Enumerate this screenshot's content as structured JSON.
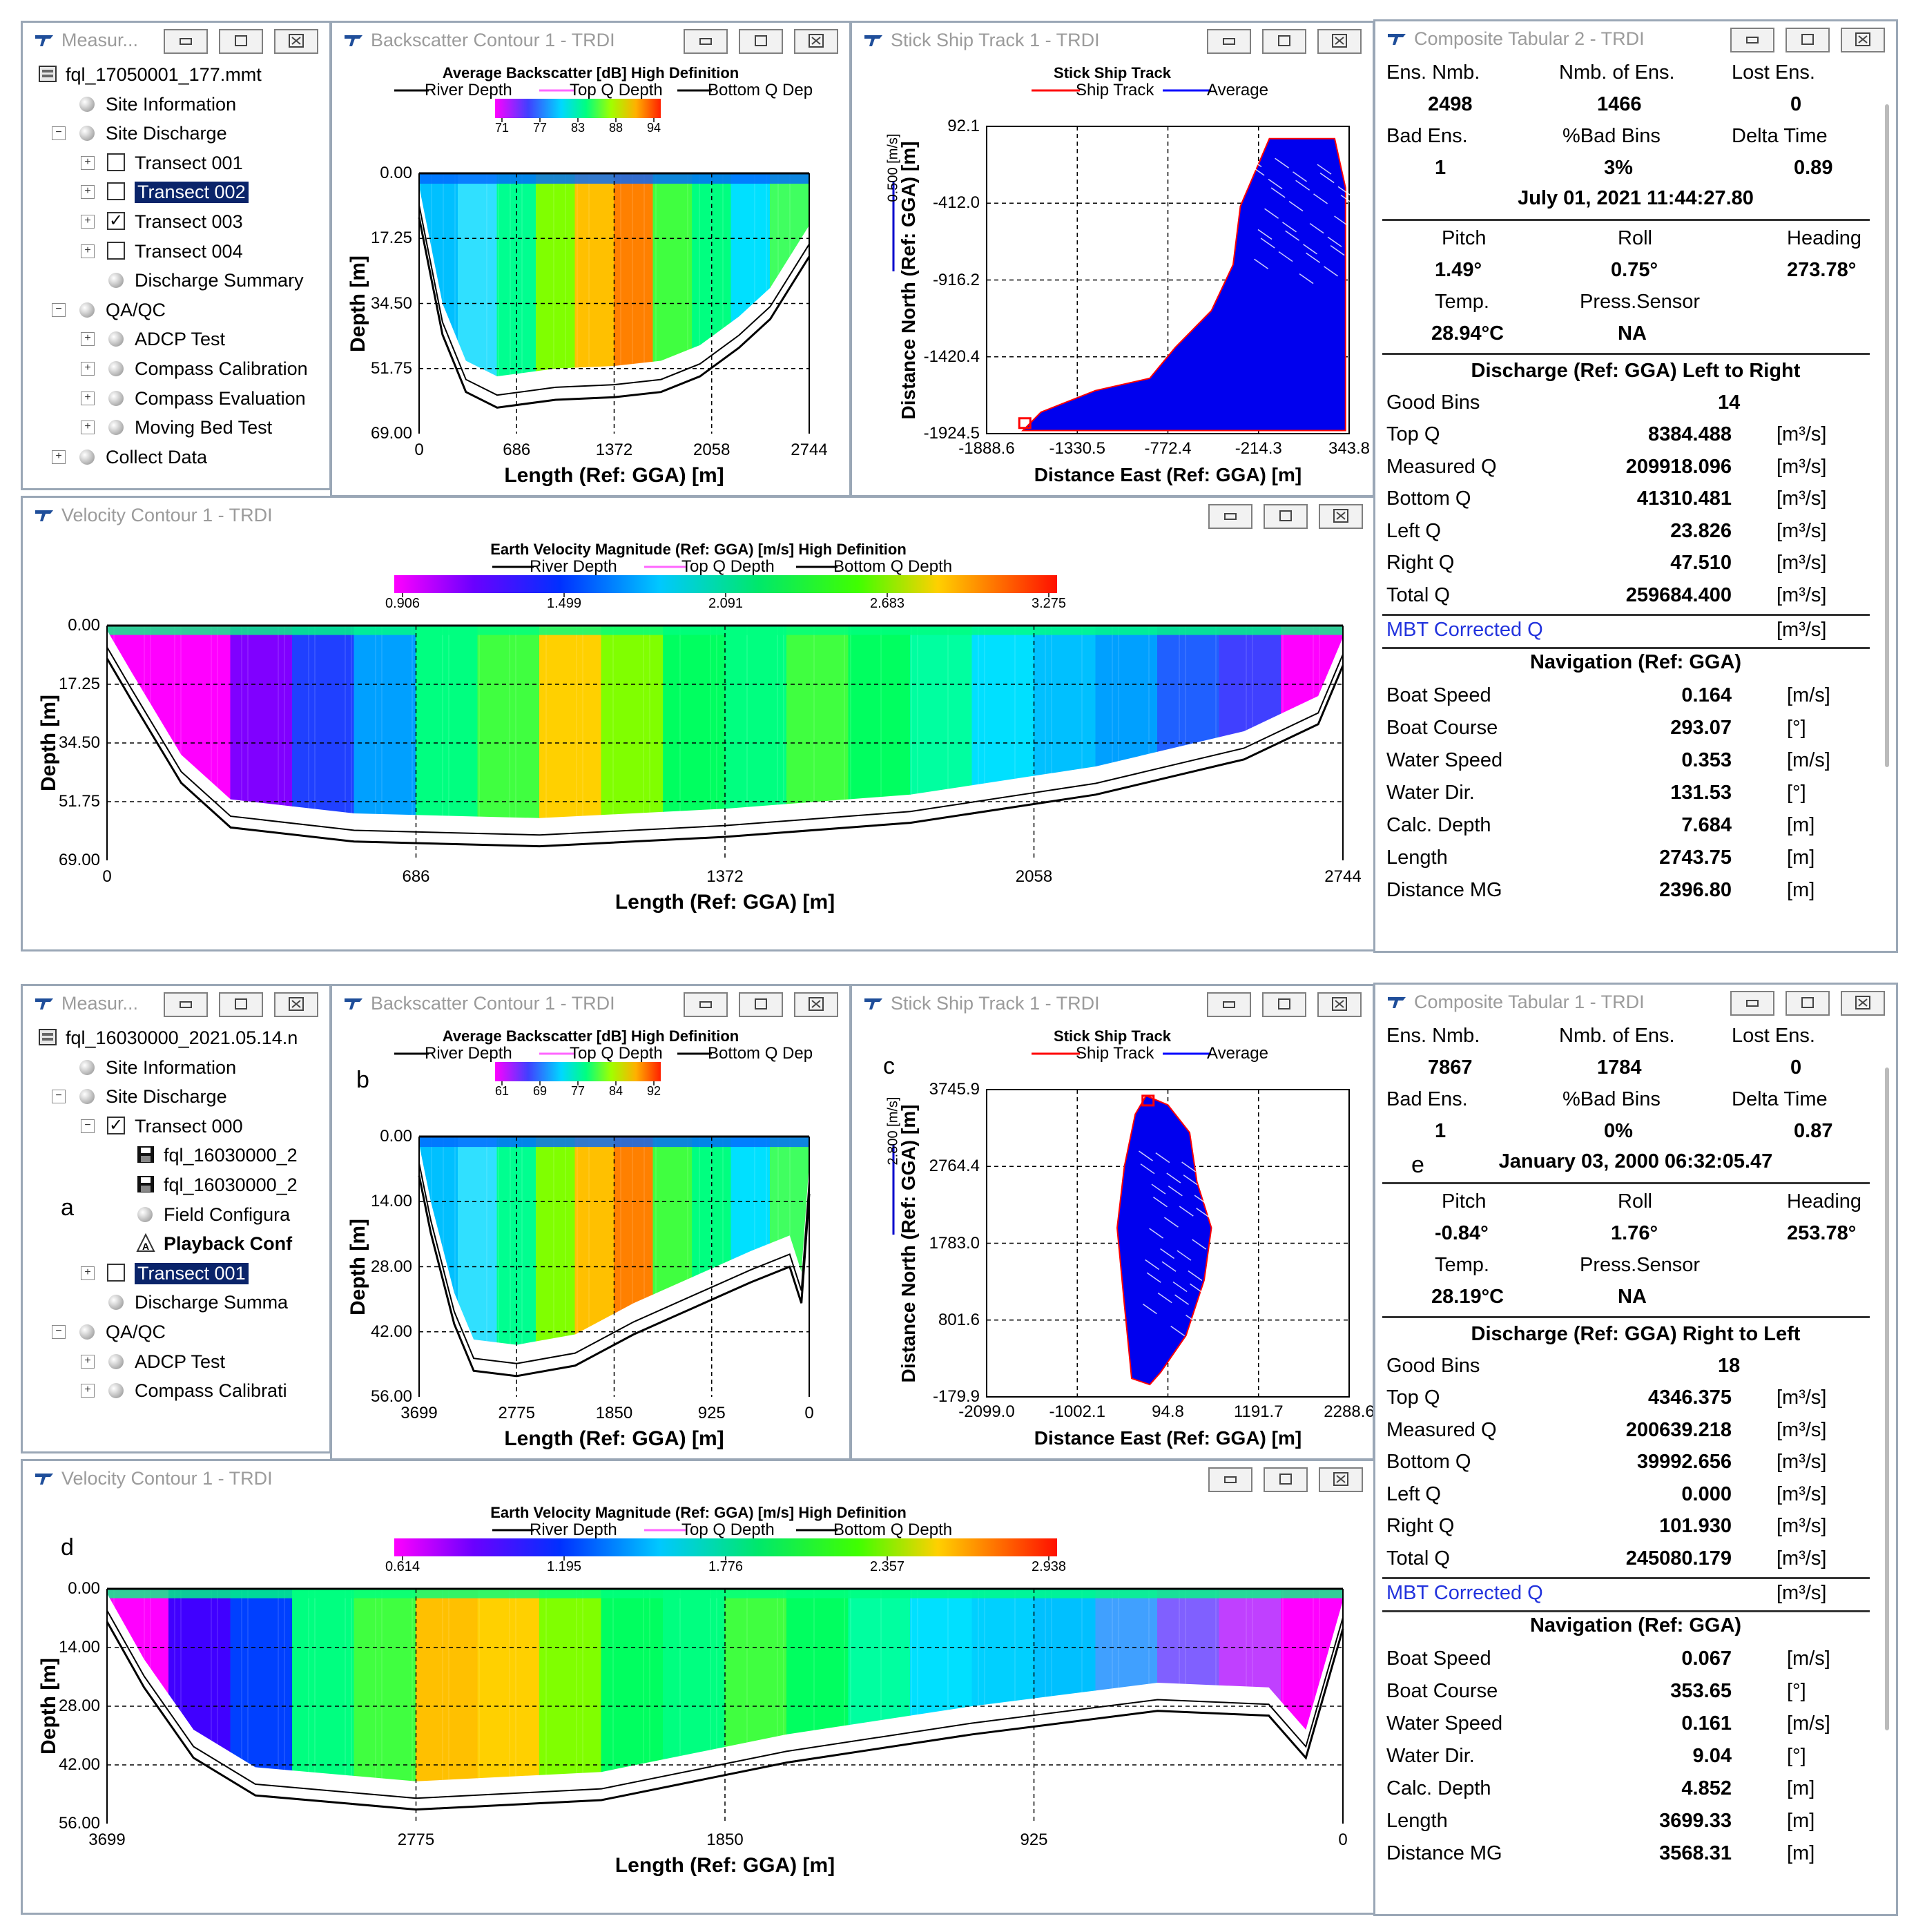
{
  "top": {
    "measurement": {
      "title": "Measur...",
      "items": [
        {
          "label": "fql_17050001_177.mmt",
          "indent": 0,
          "kind": "file",
          "exp": ""
        },
        {
          "label": "Site Information",
          "indent": 1,
          "kind": "bullet",
          "exp": ""
        },
        {
          "label": "Site Discharge",
          "indent": 1,
          "kind": "bullet",
          "exp": "−"
        },
        {
          "label": "Transect 001",
          "indent": 2,
          "kind": "cb",
          "checked": false,
          "exp": "+"
        },
        {
          "label": "Transect 002",
          "indent": 2,
          "kind": "cb",
          "checked": false,
          "exp": "+",
          "selected": true
        },
        {
          "label": "Transect 003",
          "indent": 2,
          "kind": "cb",
          "checked": true,
          "exp": "+"
        },
        {
          "label": "Transect 004",
          "indent": 2,
          "kind": "cb",
          "checked": false,
          "exp": "+"
        },
        {
          "label": "Discharge Summary",
          "indent": 2,
          "kind": "bullet",
          "exp": ""
        },
        {
          "label": "QA/QC",
          "indent": 1,
          "kind": "bullet",
          "exp": "−"
        },
        {
          "label": "ADCP Test",
          "indent": 2,
          "kind": "bullet",
          "exp": "+"
        },
        {
          "label": "Compass Calibration",
          "indent": 2,
          "kind": "bullet",
          "exp": "+"
        },
        {
          "label": "Compass Evaluation",
          "indent": 2,
          "kind": "bullet",
          "exp": "+"
        },
        {
          "label": "Moving Bed Test",
          "indent": 2,
          "kind": "bullet",
          "exp": "+"
        },
        {
          "label": "Collect Data",
          "indent": 1,
          "kind": "bullet",
          "exp": "+"
        }
      ]
    },
    "backscatter": {
      "title": "Backscatter Contour 1 - TRDI",
      "heading": "Average Backscatter [dB] High Definition",
      "legend": [
        "River Depth",
        "Top Q Depth",
        "Bottom Q Dep"
      ],
      "scale": [
        "71",
        "77",
        "83",
        "88",
        "94"
      ],
      "yticks": [
        "0.00",
        "17.25",
        "34.50",
        "51.75",
        "69.00"
      ],
      "xticks": [
        "0",
        "686",
        "1372",
        "2058",
        "2744"
      ],
      "ylabel": "Depth [m]",
      "xlabel": "Length (Ref: GGA) [m]"
    },
    "shiptrack": {
      "title": "Stick Ship Track 1 - TRDI",
      "heading": "Stick Ship Track",
      "legend": [
        "Ship Track",
        "Average"
      ],
      "yticks": [
        "92.1",
        "-412.0",
        "-916.2",
        "-1420.4",
        "-1924.5"
      ],
      "xticks": [
        "-1888.6",
        "-1330.5",
        "-772.4",
        "-214.3",
        "343.8"
      ],
      "ylabel": "Distance North (Ref: GGA) [m]",
      "xlabel": "Distance East (Ref: GGA) [m]",
      "scalebar": "0.500 [m/s]"
    },
    "velocity": {
      "title": "Velocity Contour 1 - TRDI",
      "heading": "Earth Velocity Magnitude (Ref: GGA) [m/s] High Definition",
      "legend": [
        "River Depth",
        "Top Q Depth",
        "Bottom Q Depth"
      ],
      "scale": [
        "0.906",
        "1.499",
        "2.091",
        "2.683",
        "3.275"
      ],
      "yticks": [
        "0.00",
        "17.25",
        "34.50",
        "51.75",
        "69.00"
      ],
      "xticks": [
        "0",
        "686",
        "1372",
        "2058",
        "2744"
      ],
      "ylabel": "Depth [m]",
      "xlabel": "Length (Ref: GGA) [m]"
    },
    "tabular": {
      "title": "Composite Tabular 2 - TRDI",
      "h1": [
        "Ens. Nmb.",
        "Nmb. of Ens.",
        "Lost Ens."
      ],
      "v1": [
        "2498",
        "1466",
        "0"
      ],
      "h2": [
        "Bad Ens.",
        "%Bad Bins",
        "Delta Time"
      ],
      "v2": [
        "1",
        "3%",
        "0.89"
      ],
      "date": "July 01, 2021  11:44:27.80",
      "h3": [
        "Pitch",
        "Roll",
        "Heading"
      ],
      "v3": [
        "1.49°",
        "0.75°",
        "273.78°"
      ],
      "h4": [
        "Temp.",
        "Press.Sensor"
      ],
      "v4": [
        "28.94°C",
        "NA"
      ],
      "discharge_title": "Discharge (Ref: GGA) Left to Right",
      "good_bins_label": "Good Bins",
      "good_bins": "14",
      "q_rows": [
        {
          "label": "Top Q",
          "value": "8384.488",
          "unit": "[m³/s]"
        },
        {
          "label": "Measured Q",
          "value": "209918.096",
          "unit": "[m³/s]"
        },
        {
          "label": "Bottom Q",
          "value": "41310.481",
          "unit": "[m³/s]"
        },
        {
          "label": "Left Q",
          "value": "23.826",
          "unit": "[m³/s]"
        },
        {
          "label": "Right Q",
          "value": "47.510",
          "unit": "[m³/s]"
        },
        {
          "label": "Total Q",
          "value": "259684.400",
          "unit": "[m³/s]"
        }
      ],
      "mbt_label": "MBT Corrected Q",
      "mbt_unit": "[m³/s]",
      "nav_title": "Navigation (Ref: GGA)",
      "nav_rows": [
        {
          "label": "Boat Speed",
          "value": "0.164",
          "unit": "[m/s]"
        },
        {
          "label": "Boat Course",
          "value": "293.07",
          "unit": "[°]"
        },
        {
          "label": "Water Speed",
          "value": "0.353",
          "unit": "[m/s]"
        },
        {
          "label": "Water Dir.",
          "value": "131.53",
          "unit": "[°]"
        },
        {
          "label": "Calc. Depth",
          "value": "7.684",
          "unit": "[m]"
        },
        {
          "label": "Length",
          "value": "2743.75",
          "unit": "[m]"
        },
        {
          "label": "Distance MG",
          "value": "2396.80",
          "unit": "[m]"
        }
      ]
    }
  },
  "bottom": {
    "labels": {
      "a": "a",
      "b": "b",
      "c": "c",
      "d": "d",
      "e": "e"
    },
    "measurement": {
      "title": "Measur...",
      "items": [
        {
          "label": "fql_16030000_2021.05.14.n",
          "indent": 0,
          "kind": "file",
          "exp": ""
        },
        {
          "label": "Site Information",
          "indent": 1,
          "kind": "bullet",
          "exp": ""
        },
        {
          "label": "Site Discharge",
          "indent": 1,
          "kind": "bullet",
          "exp": "−"
        },
        {
          "label": "Transect 000",
          "indent": 2,
          "kind": "cb",
          "checked": true,
          "exp": "−"
        },
        {
          "label": "fql_16030000_2",
          "indent": 3,
          "kind": "disk",
          "exp": ""
        },
        {
          "label": "fql_16030000_2",
          "indent": 3,
          "kind": "disk",
          "exp": ""
        },
        {
          "label": "Field Configura",
          "indent": 3,
          "kind": "bullet",
          "exp": ""
        },
        {
          "label": "Playback Conf",
          "indent": 3,
          "kind": "play",
          "exp": "",
          "bold": true
        },
        {
          "label": "Transect 001",
          "indent": 2,
          "kind": "cb",
          "checked": false,
          "exp": "+",
          "selected": true
        },
        {
          "label": "Discharge Summa",
          "indent": 2,
          "kind": "bullet",
          "exp": ""
        },
        {
          "label": "QA/QC",
          "indent": 1,
          "kind": "bullet",
          "exp": "−"
        },
        {
          "label": "ADCP Test",
          "indent": 2,
          "kind": "bullet",
          "exp": "+"
        },
        {
          "label": "Compass Calibrati",
          "indent": 2,
          "kind": "bullet",
          "exp": "+"
        }
      ]
    },
    "backscatter": {
      "title": "Backscatter Contour 1 - TRDI",
      "heading": "Average Backscatter [dB] High Definition",
      "legend": [
        "River Depth",
        "Top Q Depth",
        "Bottom Q Dep"
      ],
      "scale": [
        "61",
        "69",
        "77",
        "84",
        "92"
      ],
      "yticks": [
        "0.00",
        "14.00",
        "28.00",
        "42.00",
        "56.00"
      ],
      "xticks": [
        "3699",
        "2775",
        "1850",
        "925",
        "0"
      ],
      "ylabel": "Depth [m]",
      "xlabel": "Length (Ref: GGA) [m]"
    },
    "shiptrack": {
      "title": "Stick Ship Track 1 - TRDI",
      "heading": "Stick Ship Track",
      "legend": [
        "Ship Track",
        "Average"
      ],
      "yticks": [
        "3745.9",
        "2764.4",
        "1783.0",
        "801.6",
        "-179.9"
      ],
      "xticks": [
        "-2099.0",
        "-1002.1",
        "94.8",
        "1191.7",
        "2288.6"
      ],
      "ylabel": "Distance North (Ref: GGA) [m]",
      "xlabel": "Distance East (Ref: GGA) [m]",
      "scalebar": "2.800 [m/s]"
    },
    "velocity": {
      "title": "Velocity Contour 1 - TRDI",
      "heading": "Earth Velocity Magnitude (Ref: GGA) [m/s] High Definition",
      "legend": [
        "River Depth",
        "Top Q Depth",
        "Bottom Q Depth"
      ],
      "scale": [
        "0.614",
        "1.195",
        "1.776",
        "2.357",
        "2.938"
      ],
      "yticks": [
        "0.00",
        "14.00",
        "28.00",
        "42.00",
        "56.00"
      ],
      "xticks": [
        "3699",
        "2775",
        "1850",
        "925",
        "0"
      ],
      "ylabel": "Depth [m]",
      "xlabel": "Length (Ref: GGA) [m]"
    },
    "tabular": {
      "title": "Composite Tabular 1 - TRDI",
      "h1": [
        "Ens. Nmb.",
        "Nmb. of Ens.",
        "Lost Ens."
      ],
      "v1": [
        "7867",
        "1784",
        "0"
      ],
      "h2": [
        "Bad Ens.",
        "%Bad Bins",
        "Delta Time"
      ],
      "v2": [
        "1",
        "0%",
        "0.87"
      ],
      "date": "January 03, 2000  06:32:05.47",
      "h3": [
        "Pitch",
        "Roll",
        "Heading"
      ],
      "v3": [
        "-0.84°",
        "1.76°",
        "253.78°"
      ],
      "h4": [
        "Temp.",
        "Press.Sensor"
      ],
      "v4": [
        "28.19°C",
        "NA"
      ],
      "discharge_title": "Discharge (Ref: GGA) Right to Left",
      "good_bins_label": "Good Bins",
      "good_bins": "18",
      "q_rows": [
        {
          "label": "Top Q",
          "value": "4346.375",
          "unit": "[m³/s]"
        },
        {
          "label": "Measured Q",
          "value": "200639.218",
          "unit": "[m³/s]"
        },
        {
          "label": "Bottom Q",
          "value": "39992.656",
          "unit": "[m³/s]"
        },
        {
          "label": "Left Q",
          "value": "0.000",
          "unit": "[m³/s]"
        },
        {
          "label": "Right Q",
          "value": "101.930",
          "unit": "[m³/s]"
        },
        {
          "label": "Total Q",
          "value": "245080.179",
          "unit": "[m³/s]"
        }
      ],
      "mbt_label": "MBT Corrected Q",
      "mbt_unit": "[m³/s]",
      "nav_title": "Navigation (Ref: GGA)",
      "nav_rows": [
        {
          "label": "Boat Speed",
          "value": "0.067",
          "unit": "[m/s]"
        },
        {
          "label": "Boat Course",
          "value": "353.65",
          "unit": "[°]"
        },
        {
          "label": "Water Speed",
          "value": "0.161",
          "unit": "[m/s]"
        },
        {
          "label": "Water Dir.",
          "value": "9.04",
          "unit": "[°]"
        },
        {
          "label": "Calc. Depth",
          "value": "4.852",
          "unit": "[m]"
        },
        {
          "label": "Length",
          "value": "3699.33",
          "unit": "[m]"
        },
        {
          "label": "Distance MG",
          "value": "3568.31",
          "unit": "[m]"
        }
      ]
    }
  }
}
